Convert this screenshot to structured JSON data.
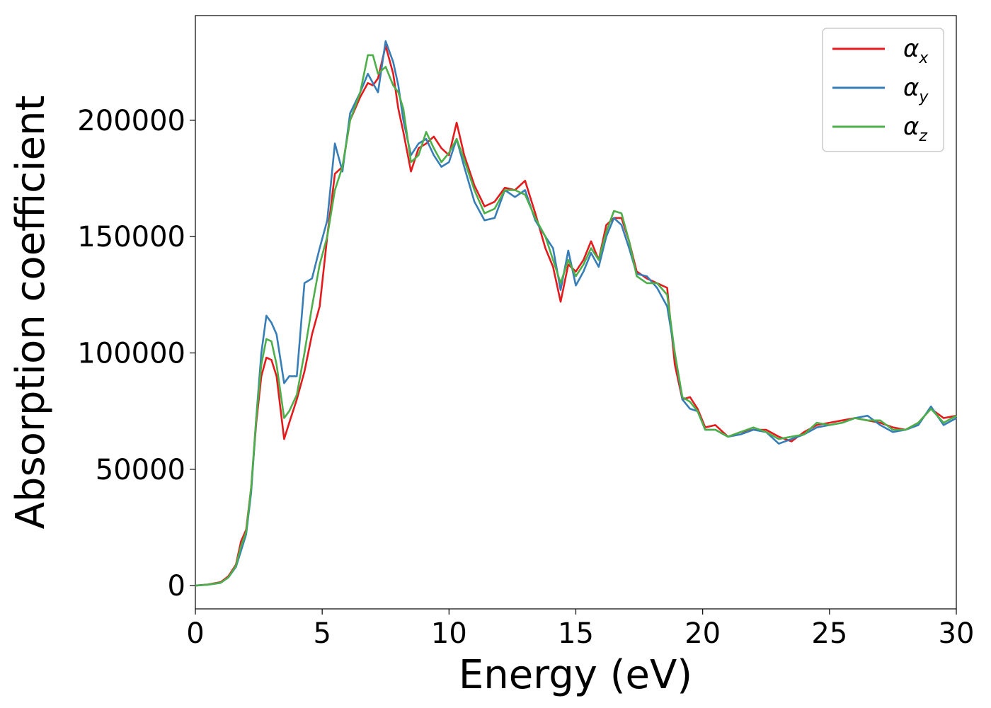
{
  "chart_data": {
    "type": "line",
    "title": "",
    "xlabel": "Energy (eV)",
    "ylabel": "Absorption coefficient",
    "xlim": [
      0,
      30
    ],
    "ylim": [
      -10000,
      245000
    ],
    "xticks": [
      0,
      5,
      10,
      15,
      20,
      25,
      30
    ],
    "yticks": [
      0,
      50000,
      100000,
      150000,
      200000
    ],
    "grid": false,
    "legend_position": "top-right",
    "series": [
      {
        "name": "α",
        "subscript": "x",
        "color": "#e41a1c",
        "x": [
          0,
          0.5,
          1,
          1.3,
          1.6,
          1.8,
          2,
          2.2,
          2.4,
          2.6,
          2.8,
          3,
          3.2,
          3.5,
          3.7,
          4,
          4.3,
          4.6,
          4.9,
          5.2,
          5.5,
          5.8,
          6.1,
          6.5,
          6.8,
          7,
          7.2,
          7.5,
          7.8,
          8,
          8.2,
          8.5,
          8.8,
          9.1,
          9.4,
          9.7,
          10,
          10.3,
          10.6,
          11,
          11.4,
          11.8,
          12.2,
          12.6,
          13,
          13.4,
          13.8,
          14.1,
          14.4,
          14.7,
          15,
          15.3,
          15.6,
          15.9,
          16.2,
          16.5,
          16.8,
          17.1,
          17.4,
          17.8,
          18.2,
          18.6,
          18.9,
          19.2,
          19.5,
          19.8,
          20.1,
          20.5,
          21,
          21.5,
          22,
          22.5,
          23,
          23.5,
          24,
          24.5,
          25,
          25.5,
          26,
          26.5,
          27,
          27.5,
          28,
          28.5,
          29,
          29.5,
          30
        ],
        "values": [
          0,
          500,
          1500,
          4000,
          9000,
          19000,
          24000,
          42000,
          70000,
          90000,
          98000,
          97000,
          90000,
          63000,
          70000,
          80000,
          92000,
          108000,
          120000,
          150000,
          177000,
          180000,
          200000,
          210000,
          216000,
          215000,
          218000,
          232000,
          220000,
          205000,
          195000,
          178000,
          188000,
          190000,
          193000,
          188000,
          185000,
          199000,
          185000,
          172000,
          163000,
          165000,
          171000,
          170000,
          174000,
          160000,
          145000,
          137000,
          122000,
          138000,
          135000,
          140000,
          148000,
          140000,
          155000,
          158000,
          158000,
          148000,
          135000,
          132000,
          130000,
          128000,
          95000,
          80000,
          81000,
          76000,
          68000,
          69000,
          64000,
          66000,
          67000,
          67000,
          64000,
          62000,
          66000,
          69000,
          70000,
          71000,
          72000,
          71000,
          70000,
          68000,
          67000,
          70000,
          76000,
          72000,
          73000
        ]
      },
      {
        "name": "α",
        "subscript": "y",
        "color": "#377eb8",
        "x": [
          0,
          0.5,
          1,
          1.3,
          1.6,
          1.8,
          2,
          2.2,
          2.4,
          2.6,
          2.8,
          3,
          3.2,
          3.5,
          3.7,
          4,
          4.3,
          4.6,
          4.9,
          5.2,
          5.5,
          5.8,
          6.1,
          6.5,
          6.8,
          7,
          7.2,
          7.5,
          7.8,
          8,
          8.2,
          8.5,
          8.8,
          9.1,
          9.4,
          9.7,
          10,
          10.3,
          10.6,
          11,
          11.4,
          11.8,
          12.2,
          12.6,
          13,
          13.4,
          13.8,
          14.1,
          14.4,
          14.7,
          15,
          15.3,
          15.6,
          15.9,
          16.2,
          16.5,
          16.8,
          17.1,
          17.4,
          17.8,
          18.2,
          18.6,
          18.9,
          19.2,
          19.5,
          19.8,
          20.1,
          20.5,
          21,
          21.5,
          22,
          22.5,
          23,
          23.5,
          24,
          24.5,
          25,
          25.5,
          26,
          26.5,
          27,
          27.5,
          28,
          28.5,
          29,
          29.5,
          30
        ],
        "values": [
          0,
          400,
          1200,
          3500,
          8000,
          15000,
          22000,
          40000,
          72000,
          100000,
          116000,
          113000,
          108000,
          87000,
          90000,
          90000,
          130000,
          132000,
          145000,
          157000,
          190000,
          178000,
          203000,
          212000,
          220000,
          216000,
          212000,
          234000,
          225000,
          215000,
          200000,
          185000,
          190000,
          192000,
          185000,
          180000,
          182000,
          192000,
          180000,
          165000,
          157000,
          158000,
          170000,
          167000,
          170000,
          157000,
          150000,
          145000,
          127000,
          144000,
          129000,
          135000,
          143000,
          137000,
          150000,
          158000,
          155000,
          145000,
          134000,
          133000,
          128000,
          120000,
          100000,
          80000,
          76000,
          75000,
          67000,
          67000,
          64000,
          65000,
          67000,
          66000,
          61000,
          63000,
          65000,
          68000,
          69000,
          70000,
          72000,
          73000,
          69000,
          66000,
          67000,
          69000,
          77000,
          69000,
          72000
        ]
      },
      {
        "name": "α",
        "subscript": "z",
        "color": "#4daf4a",
        "x": [
          0,
          0.5,
          1,
          1.3,
          1.6,
          1.8,
          2,
          2.2,
          2.4,
          2.6,
          2.8,
          3,
          3.2,
          3.5,
          3.7,
          4,
          4.3,
          4.6,
          4.9,
          5.2,
          5.5,
          5.8,
          6.1,
          6.5,
          6.8,
          7,
          7.2,
          7.5,
          7.8,
          8,
          8.2,
          8.5,
          8.8,
          9.1,
          9.4,
          9.7,
          10,
          10.3,
          10.6,
          11,
          11.4,
          11.8,
          12.2,
          12.6,
          13,
          13.4,
          13.8,
          14.1,
          14.4,
          14.7,
          15,
          15.3,
          15.6,
          15.9,
          16.2,
          16.5,
          16.8,
          17.1,
          17.4,
          17.8,
          18.2,
          18.6,
          18.9,
          19.2,
          19.5,
          19.8,
          20.1,
          20.5,
          21,
          21.5,
          22,
          22.5,
          23,
          23.5,
          24,
          24.5,
          25,
          25.5,
          26,
          26.5,
          27,
          27.5,
          28,
          28.5,
          29,
          29.5,
          30
        ],
        "values": [
          0,
          400,
          1300,
          3500,
          8500,
          17000,
          23000,
          42000,
          72000,
          95000,
          106000,
          105000,
          95000,
          72000,
          75000,
          82000,
          100000,
          120000,
          138000,
          150000,
          170000,
          180000,
          200000,
          212000,
          228000,
          228000,
          220000,
          223000,
          215000,
          212000,
          205000,
          182000,
          185000,
          195000,
          188000,
          182000,
          186000,
          192000,
          183000,
          170000,
          160000,
          162000,
          170000,
          170000,
          168000,
          158000,
          150000,
          140000,
          130000,
          140000,
          133000,
          138000,
          145000,
          140000,
          152000,
          161000,
          160000,
          148000,
          133000,
          130000,
          130000,
          125000,
          100000,
          81000,
          79000,
          75000,
          67000,
          67000,
          64000,
          66000,
          68000,
          66000,
          63000,
          64000,
          65000,
          70000,
          69000,
          70000,
          72000,
          71000,
          71000,
          67000,
          67000,
          70000,
          76000,
          70000,
          73000
        ]
      }
    ]
  }
}
